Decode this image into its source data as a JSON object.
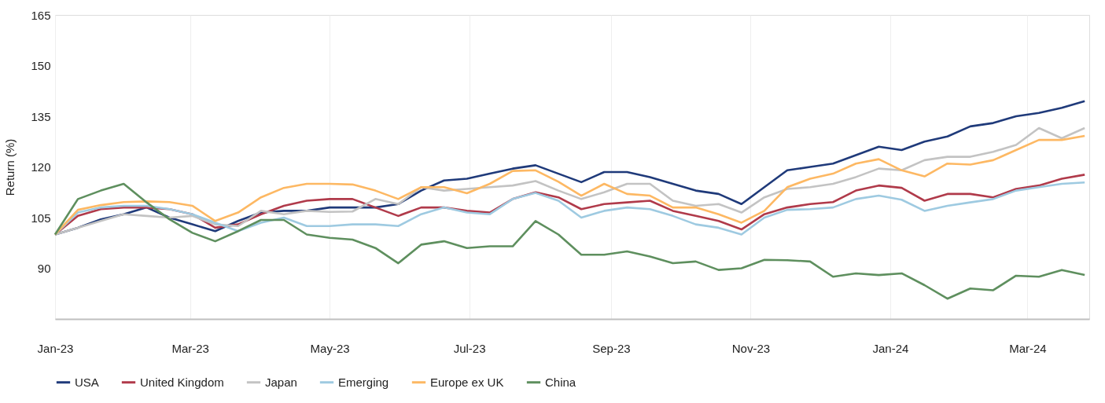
{
  "chart_data": {
    "type": "line",
    "ylabel": "Return (%)",
    "x": [
      "2023-01-01",
      "2023-01-11",
      "2023-01-21",
      "2023-01-31",
      "2023-02-10",
      "2023-02-20",
      "2023-03-02",
      "2023-03-12",
      "2023-03-22",
      "2023-04-01",
      "2023-04-11",
      "2023-04-21",
      "2023-05-01",
      "2023-05-11",
      "2023-05-21",
      "2023-05-31",
      "2023-06-10",
      "2023-06-20",
      "2023-06-30",
      "2023-07-10",
      "2023-07-20",
      "2023-07-30",
      "2023-08-09",
      "2023-08-19",
      "2023-08-29",
      "2023-09-08",
      "2023-09-18",
      "2023-09-28",
      "2023-10-08",
      "2023-10-18",
      "2023-10-28",
      "2023-11-07",
      "2023-11-17",
      "2023-11-27",
      "2023-12-07",
      "2023-12-17",
      "2023-12-27",
      "2024-01-06",
      "2024-01-16",
      "2024-01-26",
      "2024-02-05",
      "2024-02-15",
      "2024-02-25",
      "2024-03-06",
      "2024-03-16",
      "2024-03-26"
    ],
    "series": [
      {
        "name": "USA",
        "color": "#1f3a7a",
        "values": [
          100,
          102,
          104.5,
          106,
          108,
          105,
          103,
          101,
          104,
          106.5,
          107,
          107,
          108,
          108,
          108,
          109,
          113,
          116,
          116.5,
          118,
          119.5,
          120.5,
          118,
          115.5,
          118.5,
          118.5,
          117,
          115,
          113,
          112,
          109,
          114,
          119,
          120,
          121,
          123.5,
          126,
          125,
          127.5,
          129,
          132,
          133,
          135,
          136,
          137.5,
          139.5
        ]
      },
      {
        "name": "United Kingdom",
        "color": "#b03a4a",
        "values": [
          100,
          105.5,
          107.5,
          108,
          108,
          107.5,
          106,
          102,
          103,
          106,
          108.5,
          110,
          110.5,
          110.5,
          108,
          105.5,
          108,
          108,
          107,
          106.5,
          110.5,
          112.5,
          111,
          107.5,
          109,
          109.5,
          110,
          107,
          105.5,
          104,
          101.5,
          106,
          108,
          109,
          109.6,
          113,
          114.5,
          113.8,
          110,
          112,
          112,
          111,
          113.5,
          114.5,
          116.5,
          117.7
        ]
      },
      {
        "name": "Japan",
        "color": "#c3c3c3",
        "values": [
          100,
          102,
          104,
          106,
          105.5,
          105,
          105.5,
          103,
          102.5,
          107,
          106,
          107,
          106.7,
          106.8,
          110.5,
          109,
          114,
          113,
          113.5,
          114,
          114.5,
          115.8,
          113,
          110.5,
          112.5,
          115,
          115,
          110,
          108.5,
          109,
          106.5,
          111,
          113.5,
          114,
          115,
          117,
          119.5,
          119,
          122,
          123,
          123,
          124.5,
          126.5,
          131.5,
          128.5,
          131.5
        ]
      },
      {
        "name": "Emerging",
        "color": "#9ecae1",
        "values": [
          100,
          106.5,
          108,
          108.5,
          108.5,
          107.5,
          106,
          103.5,
          101,
          103.5,
          105,
          102.5,
          102.5,
          103,
          103,
          102.5,
          106,
          108,
          106.5,
          106,
          110.5,
          112.3,
          110,
          105,
          107,
          108,
          107.5,
          105.5,
          103,
          102,
          100,
          105,
          107.3,
          107.5,
          108,
          110.5,
          111.5,
          110.3,
          107,
          108.5,
          109.5,
          110.5,
          113,
          114,
          115,
          115.4
        ]
      },
      {
        "name": "Europe ex UK",
        "color": "#fdb863",
        "values": [
          100,
          107.3,
          108.7,
          109.6,
          109.8,
          109.6,
          108.5,
          104,
          106.5,
          111,
          113.8,
          115,
          115,
          114.8,
          113,
          110.5,
          114,
          114,
          112.2,
          115,
          118.8,
          119,
          115.6,
          111.5,
          115,
          112,
          111.5,
          108,
          108,
          106,
          103.5,
          107,
          114,
          116.5,
          118,
          121,
          122.3,
          119,
          117.2,
          121,
          120.7,
          122,
          125,
          128,
          128,
          129.2
        ]
      },
      {
        "name": "China",
        "color": "#5e8f5e",
        "values": [
          100,
          110.5,
          113,
          115,
          109.5,
          104.5,
          100.5,
          98,
          101,
          104.3,
          104.3,
          100,
          99,
          98.5,
          96,
          91.5,
          97,
          98,
          96,
          96.5,
          96.5,
          104,
          100,
          94,
          94,
          95,
          93.5,
          91.5,
          92,
          89.5,
          90,
          92.5,
          92.4,
          92,
          87.5,
          88.5,
          88,
          88.5,
          85,
          81,
          84,
          83.5,
          87.8,
          87.5,
          89.5,
          88
        ]
      }
    ],
    "xlim": [
      "2023-01-01",
      "2024-03-28"
    ],
    "xticks": [
      {
        "value": "2023-01-01",
        "label": "Jan-23"
      },
      {
        "value": "2023-03-01",
        "label": "Mar-23"
      },
      {
        "value": "2023-05-01",
        "label": "May-23"
      },
      {
        "value": "2023-07-01",
        "label": "Jul-23"
      },
      {
        "value": "2023-09-01",
        "label": "Sep-23"
      },
      {
        "value": "2023-11-01",
        "label": "Nov-23"
      },
      {
        "value": "2024-01-01",
        "label": "Jan-24"
      },
      {
        "value": "2024-03-01",
        "label": "Mar-24"
      }
    ],
    "ylim": [
      75,
      165
    ],
    "yticks": [
      90,
      105,
      120,
      135,
      150,
      165
    ],
    "grid": "x",
    "legend": "bottom",
    "line_style": "solid",
    "marker": "none"
  }
}
